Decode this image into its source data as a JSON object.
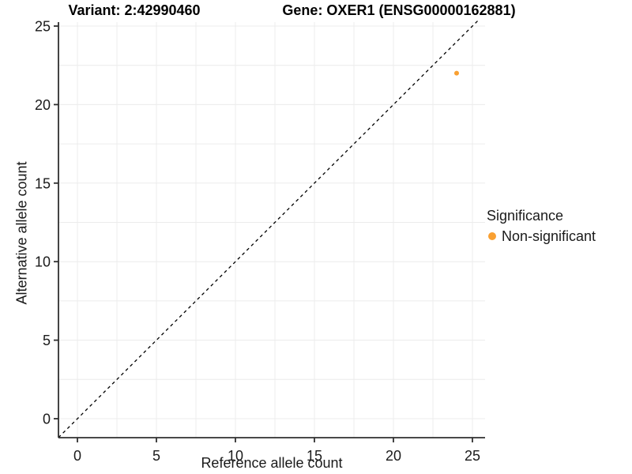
{
  "figure": {
    "title_variant": "Variant: 2:42990460",
    "title_gene": "Gene: OXER1 (ENSG00000162881)"
  },
  "chart_data": {
    "type": "scatter",
    "title_left": "Variant: 2:42990460",
    "title_right": "Gene: OXER1 (ENSG00000162881)",
    "xlabel": "Reference allele count",
    "ylabel": "Alternative allele count",
    "xlim": [
      -1.2,
      25.8
    ],
    "ylim": [
      -1.2,
      25.45
    ],
    "x_ticks": [
      0,
      5,
      10,
      15,
      20,
      25
    ],
    "y_ticks": [
      0,
      5,
      10,
      15,
      20,
      25
    ],
    "grid": true,
    "minor_grid_step": 2.5,
    "points": [
      {
        "x": 24,
        "y": 22,
        "series": "Non-significant"
      }
    ],
    "identity_line": {
      "style": "dashed",
      "from": [
        -1.2,
        -1.2
      ],
      "to": [
        25.45,
        25.45
      ],
      "color": "#000000"
    },
    "legend": {
      "title": "Significance",
      "position": "right",
      "items": [
        {
          "label": "Non-significant",
          "color": "#F9A032"
        }
      ]
    },
    "colors": {
      "non_significant": "#F9A032",
      "grid": "#ECECEC",
      "axis": "#2F2F2F",
      "text": "#1A1A1A"
    }
  }
}
